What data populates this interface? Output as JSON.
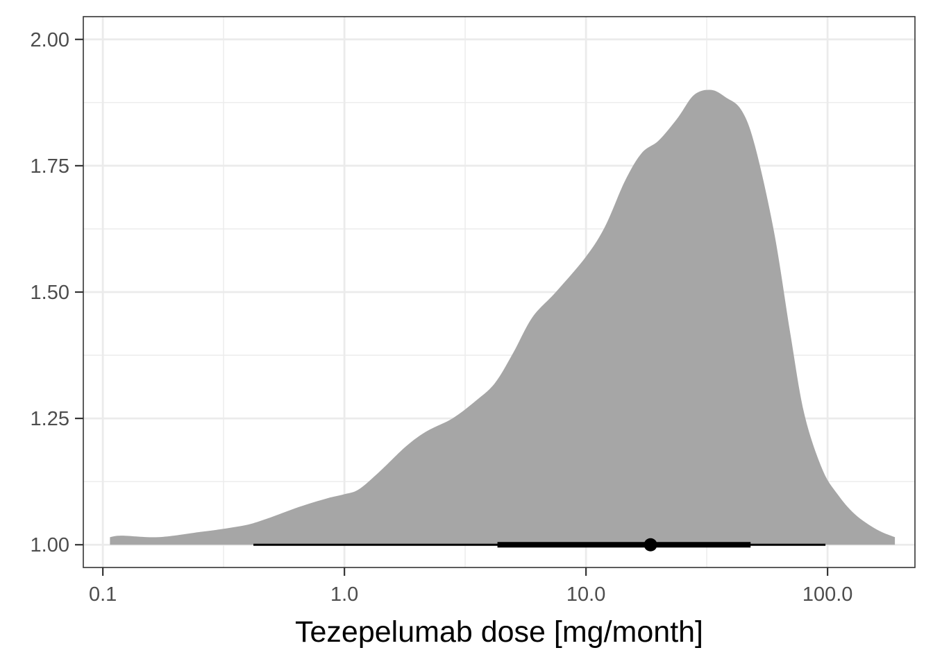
{
  "chart_data": {
    "type": "area",
    "title": "",
    "xlabel": "Tezepelumab dose [mg/month]",
    "ylabel": "",
    "x_scale": "log10",
    "xlim": [
      0.083,
      230
    ],
    "ylim": [
      0.955,
      2.045
    ],
    "x_ticks": [
      0.1,
      1.0,
      10.0,
      100.0
    ],
    "x_tick_labels": [
      "0.1",
      "1.0",
      "10.0",
      "100.0"
    ],
    "y_ticks": [
      1.0,
      1.25,
      1.5,
      1.75,
      2.0
    ],
    "y_tick_labels": [
      "1.00",
      "1.25",
      "1.50",
      "1.75",
      "2.00"
    ],
    "x_minor_ticks": [
      0.316,
      3.16,
      31.6
    ],
    "y_minor_ticks": [
      1.125,
      1.375,
      1.625,
      1.875
    ],
    "grid": true,
    "fill_color": "#a6a6a6",
    "series": [
      {
        "baseline": 1.0,
        "x": [
          0.107,
          0.12,
          0.17,
          0.25,
          0.3,
          0.4,
          0.5,
          0.65,
          0.85,
          1.0,
          1.15,
          1.4,
          1.8,
          2.2,
          2.8,
          3.5,
          4.2,
          5.0,
          6.0,
          7.5,
          10.0,
          12.0,
          14.5,
          17.0,
          20.0,
          24.0,
          28.0,
          33.0,
          38.0,
          44.0,
          50.0,
          60.0,
          70.0,
          80.0,
          95.0,
          110.0,
          130.0,
          160.0,
          190.0
        ],
        "y": [
          1.015,
          1.018,
          1.015,
          1.025,
          1.03,
          1.04,
          1.055,
          1.075,
          1.092,
          1.1,
          1.11,
          1.145,
          1.195,
          1.225,
          1.25,
          1.285,
          1.32,
          1.38,
          1.45,
          1.5,
          1.57,
          1.63,
          1.72,
          1.775,
          1.8,
          1.845,
          1.89,
          1.9,
          1.885,
          1.86,
          1.79,
          1.62,
          1.42,
          1.26,
          1.15,
          1.1,
          1.06,
          1.03,
          1.015
        ]
      }
    ],
    "point_interval": {
      "y": 1.0,
      "point": 18.5,
      "inner": [
        4.3,
        48.0
      ],
      "outer": [
        0.42,
        98.0
      ],
      "color": "#000000"
    }
  }
}
